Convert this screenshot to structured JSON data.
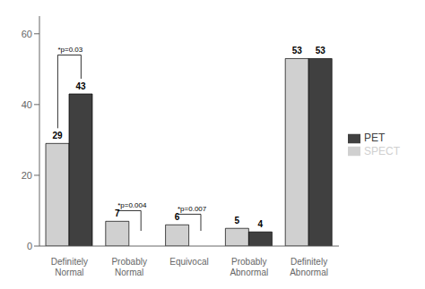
{
  "chart_data": {
    "type": "bar",
    "categories": [
      "Definitely\nNormal",
      "Probably\nNormal",
      "Equivocal",
      "Probably\nAbnormal",
      "Definitely\nAbnormal"
    ],
    "series": [
      {
        "name": "SPECT",
        "color": "#d0d0d0",
        "values": [
          29,
          7,
          6,
          5,
          53
        ]
      },
      {
        "name": "PET",
        "color": "#404040",
        "values": [
          43,
          0,
          0,
          4,
          53
        ]
      }
    ],
    "ylim": [
      0,
      65
    ],
    "yticks": [
      0,
      20,
      40,
      60
    ],
    "data_labels": true,
    "grid": false,
    "legend": "right",
    "annotations": [
      {
        "text": "*p=0.03",
        "x": "Definitely\nNormal",
        "y": 54
      },
      {
        "text": "*p=0.004",
        "x": "Probably\nNormal",
        "y": 10
      },
      {
        "text": "*p=0.007",
        "x": "Equivocal",
        "y": 9
      }
    ]
  }
}
